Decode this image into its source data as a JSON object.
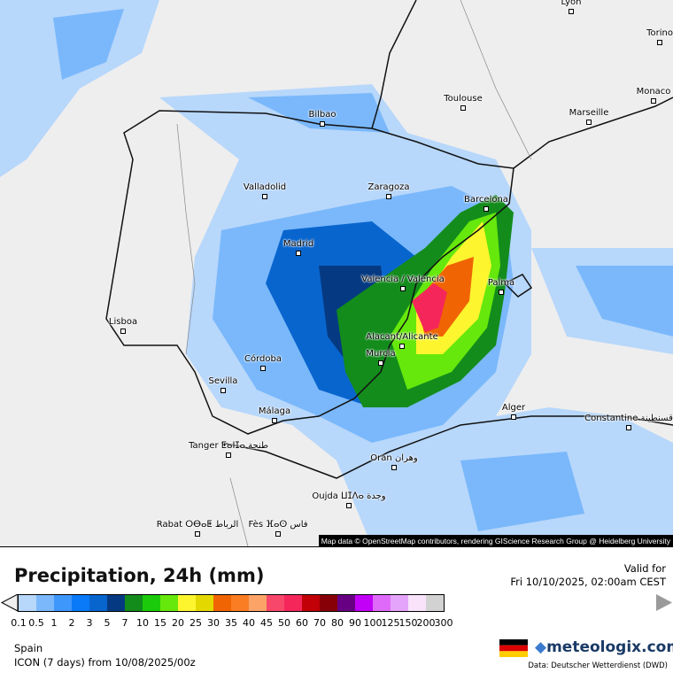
{
  "title": "Precipitation, 24h (mm)",
  "valid_label": "Valid for",
  "valid_time": "Fri 10/10/2025, 02:00am CEST",
  "region": "Spain",
  "model": "ICON (7 days)  from  10/08/2025/00z",
  "brand": "meteologix.com",
  "data_source": "Data: Deutscher Wetterdienst  (DWD)",
  "attribution": "Map data © OpenStreetMap contributors, rendering GIScience Research Group @ Heidelberg University",
  "legend": {
    "ticks": [
      "0.1",
      "0.5",
      "1",
      "2",
      "3",
      "5",
      "7",
      "10",
      "15",
      "20",
      "25",
      "30",
      "35",
      "40",
      "45",
      "50",
      "60",
      "70",
      "80",
      "90",
      "100",
      "125",
      "150",
      "200",
      "300"
    ],
    "colors": [
      "#b7d7fb",
      "#7ab8fb",
      "#3e97fb",
      "#0a7af8",
      "#0965ce",
      "#053a82",
      "#138c1c",
      "#1bcb0b",
      "#66e80c",
      "#fdf52e",
      "#e3d900",
      "#f06404",
      "#fb7d23",
      "#fca468",
      "#f7476a",
      "#f5275a",
      "#c10008",
      "#880007",
      "#680083",
      "#c200f7",
      "#df6afa",
      "#e5a4fb",
      "#f8e3fb",
      "#d2d2d2"
    ],
    "under_color": "#eeeeee",
    "over_color": "#9a9a9a"
  },
  "cities": [
    {
      "name": "Lyon"
    },
    {
      "name": "Torino"
    },
    {
      "name": "Monaco"
    },
    {
      "name": "Marseille"
    },
    {
      "name": "Toulouse"
    },
    {
      "name": "Bilbao"
    },
    {
      "name": "Barcelona"
    },
    {
      "name": "Zaragoza"
    },
    {
      "name": "Valladolid"
    },
    {
      "name": "Madrid"
    },
    {
      "name": "Valencia / Valencia"
    },
    {
      "name": "Palma"
    },
    {
      "name": "Lisboa"
    },
    {
      "name": "Alacant/Alicante"
    },
    {
      "name": "Murcia"
    },
    {
      "name": "Córdoba"
    },
    {
      "name": "Sevilla"
    },
    {
      "name": "Málaga"
    },
    {
      "name": "Alger"
    },
    {
      "name": "Constantine قسنطينة"
    },
    {
      "name": "Tanger ⵟⴰⵏⵊⴰ طنجة"
    },
    {
      "name": "Oran وهران"
    },
    {
      "name": "Oujda ⵡⵊⴷⴰ وجدة"
    },
    {
      "name": "Rabat ⵔⴱⴰⵟ الرباط"
    },
    {
      "name": "Fès ⴼⴰⵙ فاس"
    }
  ]
}
